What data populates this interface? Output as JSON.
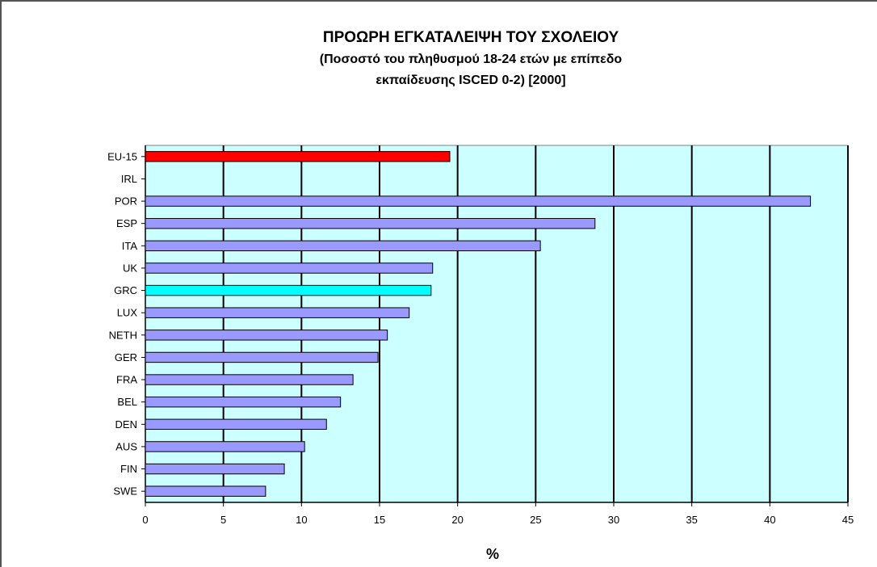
{
  "chart_data": {
    "type": "bar",
    "orientation": "horizontal",
    "title": "ΠΡΟΩΡΗ ΕΓΚΑΤΑΛΕΙΨΗ ΤΟΥ ΣΧΟΛΕΙΟΥ",
    "subtitle_lines": [
      "(Ποσοστό του πληθυσμού 18-24 ετών με επίπεδο",
      "εκπαίδευσης ISCED 0-2)  [2000]"
    ],
    "xlabel": "%",
    "ylabel": "",
    "xlim": [
      0,
      45
    ],
    "xticks": [
      0,
      5,
      10,
      15,
      20,
      25,
      30,
      35,
      40,
      45
    ],
    "grid": true,
    "legend": "none",
    "categories": [
      "EU-15",
      "IRL",
      "POR",
      "ESP",
      "ITA",
      "UK",
      "GRC",
      "LUX",
      "NETH",
      "GER",
      "FRA",
      "BEL",
      "DEN",
      "AUS",
      "FIN",
      "SWE"
    ],
    "values": [
      19.5,
      null,
      42.6,
      28.8,
      25.3,
      18.4,
      18.3,
      16.9,
      15.5,
      14.9,
      13.3,
      12.5,
      11.6,
      10.2,
      8.9,
      7.7
    ],
    "colors": {
      "default": "#9999ff",
      "EU-15": "#ff0000",
      "GRC": "#00ffff",
      "plot_background": "#ccffff",
      "grid": "#000000"
    }
  }
}
